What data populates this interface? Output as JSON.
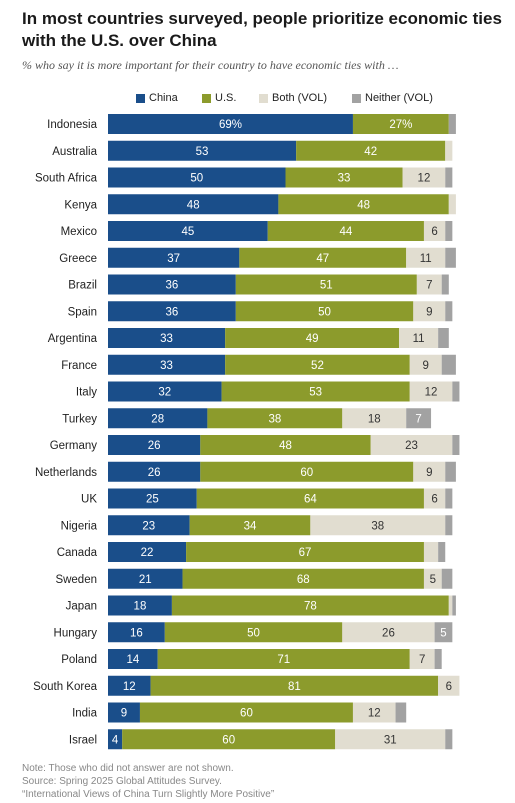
{
  "title": "In most countries surveyed, people prioritize economic ties with the U.S. over China",
  "subtitle": "% who say it is more important for their country to have economic ties with …",
  "legend": [
    {
      "label": "China",
      "color": "#1a4e8a"
    },
    {
      "label": "U.S.",
      "color": "#8c9b2c"
    },
    {
      "label": "Both (VOL)",
      "color": "#e1ddd0"
    },
    {
      "label": "Neither (VOL)",
      "color": "#a2a2a2"
    }
  ],
  "footer": {
    "note": "Note: Those who did not answer are not shown.",
    "source": "Source: Spring 2025 Global Attitudes Survey.",
    "report": "“International Views of China Turn Slightly More Positive”"
  },
  "chart_data": {
    "type": "bar",
    "orientation": "horizontal",
    "stacked": true,
    "categories": [
      "Indonesia",
      "Australia",
      "South Africa",
      "Kenya",
      "Mexico",
      "Greece",
      "Brazil",
      "Spain",
      "Argentina",
      "France",
      "Italy",
      "Turkey",
      "Germany",
      "Netherlands",
      "UK",
      "Nigeria",
      "Canada",
      "Sweden",
      "Japan",
      "Hungary",
      "Poland",
      "South Korea",
      "India",
      "Israel"
    ],
    "series": [
      {
        "name": "China",
        "color": "#1a4e8a",
        "values": [
          69,
          53,
          50,
          48,
          45,
          37,
          36,
          36,
          33,
          33,
          32,
          28,
          26,
          26,
          25,
          23,
          22,
          21,
          18,
          16,
          14,
          12,
          9,
          4
        ],
        "labels": [
          "69%",
          "53",
          "50",
          "48",
          "45",
          "37",
          "36",
          "36",
          "33",
          "33",
          "32",
          "28",
          "26",
          "26",
          "25",
          "23",
          "22",
          "21",
          "18",
          "16",
          "14",
          "12",
          "9",
          "4"
        ]
      },
      {
        "name": "U.S.",
        "color": "#8c9b2c",
        "values": [
          27,
          42,
          33,
          48,
          44,
          47,
          51,
          50,
          49,
          52,
          53,
          38,
          48,
          60,
          64,
          34,
          67,
          68,
          78,
          50,
          71,
          81,
          60,
          60
        ],
        "labels": [
          "27%",
          "42",
          "33",
          "48",
          "44",
          "47",
          "51",
          "50",
          "49",
          "52",
          "53",
          "38",
          "48",
          "60",
          "64",
          "34",
          "67",
          "68",
          "78",
          "50",
          "71",
          "81",
          "60",
          "60"
        ]
      },
      {
        "name": "Both (VOL)",
        "color": "#e1ddd0",
        "values": [
          0,
          2,
          12,
          2,
          6,
          11,
          7,
          9,
          11,
          9,
          12,
          18,
          23,
          9,
          6,
          38,
          4,
          5,
          1,
          26,
          7,
          6,
          12,
          31
        ],
        "labels": [
          "",
          "",
          "12",
          "",
          "6",
          "11",
          "7",
          "9",
          "11",
          "9",
          "12",
          "18",
          "23",
          "9",
          "6",
          "38",
          "",
          "5",
          "",
          "26",
          "7",
          "6",
          "12",
          "31"
        ]
      },
      {
        "name": "Neither (VOL)",
        "color": "#a2a2a2",
        "values": [
          2,
          0,
          2,
          0,
          2,
          3,
          2,
          2,
          3,
          4,
          2,
          7,
          2,
          3,
          2,
          2,
          2,
          3,
          1,
          5,
          2,
          0,
          3,
          2
        ],
        "labels": [
          "",
          "",
          "",
          "",
          "",
          "",
          "",
          "",
          "",
          "",
          "",
          "7",
          "",
          "",
          "",
          "",
          "",
          "",
          "",
          "5",
          "",
          "",
          "",
          ""
        ]
      }
    ],
    "xlim": [
      0,
      100
    ]
  }
}
